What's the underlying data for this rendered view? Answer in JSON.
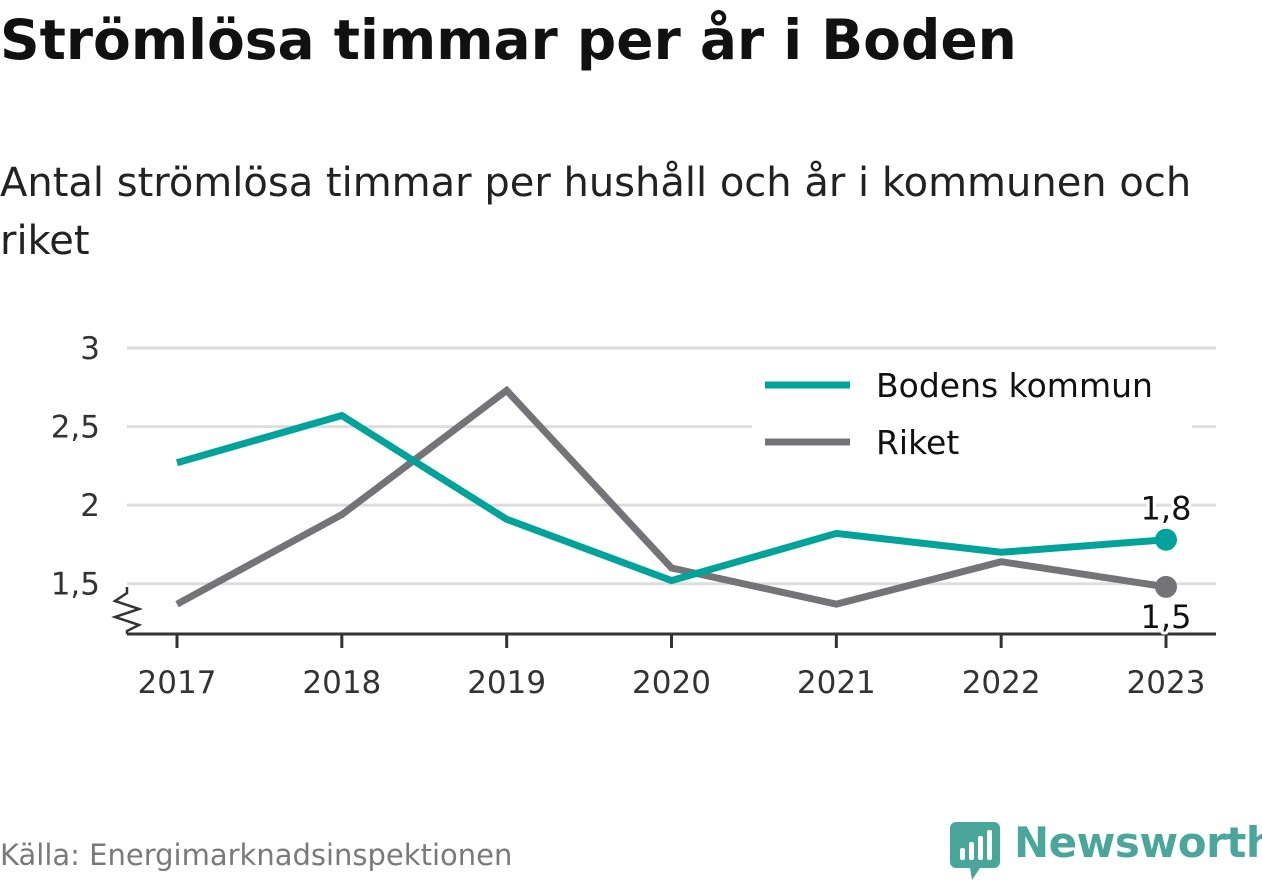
{
  "header": {
    "title": "Strömlösa timmar per år i Boden",
    "subtitle": "Antal strömlösa timmar per hushåll och år i kommunen och riket"
  },
  "footer": {
    "source": "Källa: Energimarknadsinspektionen",
    "brand": "Newsworthy",
    "brand_icon": "bar-chart-badge-icon"
  },
  "colors": {
    "boden": "#00a399",
    "riket": "#747378",
    "grid": "#dddddd",
    "axis": "#333333",
    "brand": "#4aa69b"
  },
  "chart_data": {
    "type": "line",
    "x": [
      "2017",
      "2018",
      "2019",
      "2020",
      "2021",
      "2022",
      "2023"
    ],
    "series": [
      {
        "name": "Bodens kommun",
        "values": [
          2.27,
          2.57,
          1.91,
          1.52,
          1.82,
          1.7,
          1.78
        ],
        "end_label": "1,8"
      },
      {
        "name": "Riket",
        "values": [
          1.37,
          1.94,
          2.73,
          1.6,
          1.37,
          1.64,
          1.48
        ],
        "end_label": "1,5"
      }
    ],
    "yticks": [
      {
        "value": 1.5,
        "label": "1,5"
      },
      {
        "value": 2,
        "label": "2"
      },
      {
        "value": 2.5,
        "label": "2,5"
      },
      {
        "value": 3,
        "label": "3"
      }
    ],
    "ylim": [
      1.18,
      3
    ],
    "y_axis_break": true,
    "grid": true,
    "legend_position": "top-right"
  }
}
